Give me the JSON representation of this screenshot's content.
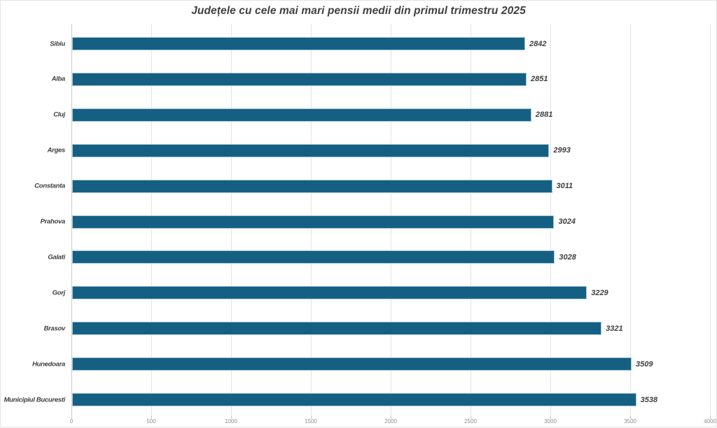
{
  "chart_data": {
    "type": "bar",
    "orientation": "horizontal",
    "title": "Județele cu cele mai mari pensii medii din primul trimestru 2025",
    "categories": [
      "Sibiu",
      "Alba",
      "Cluj",
      "Arges",
      "Constanta",
      "Prahova",
      "Galati",
      "Gorj",
      "Brasov",
      "Hunedoara",
      "Municipiul Bucuresti"
    ],
    "values": [
      2842,
      2851,
      2881,
      2993,
      3011,
      3024,
      3028,
      3229,
      3321,
      3509,
      3538
    ],
    "value_labels": [
      "2842",
      "2851",
      "2881",
      "2993",
      "3011",
      "3024",
      "3028",
      "3229",
      "3321",
      "3509",
      "3538"
    ],
    "xlabel": "",
    "ylabel": "",
    "xlim": [
      0,
      4000
    ],
    "xticks": [
      0,
      500,
      1000,
      1500,
      2000,
      2500,
      3000,
      3500,
      4000
    ],
    "grid": "vertical",
    "legend": "none",
    "colors": {
      "bar_fill": "#156082",
      "bar_border": "#a3c6da",
      "gridline": "#e4e4e4",
      "axis_line": "#c9c9c9",
      "label_text": "#3f3f3f",
      "tick_text": "#8f8f8f",
      "background": "#ffffff",
      "frame_border": "#e3e3e3"
    }
  }
}
